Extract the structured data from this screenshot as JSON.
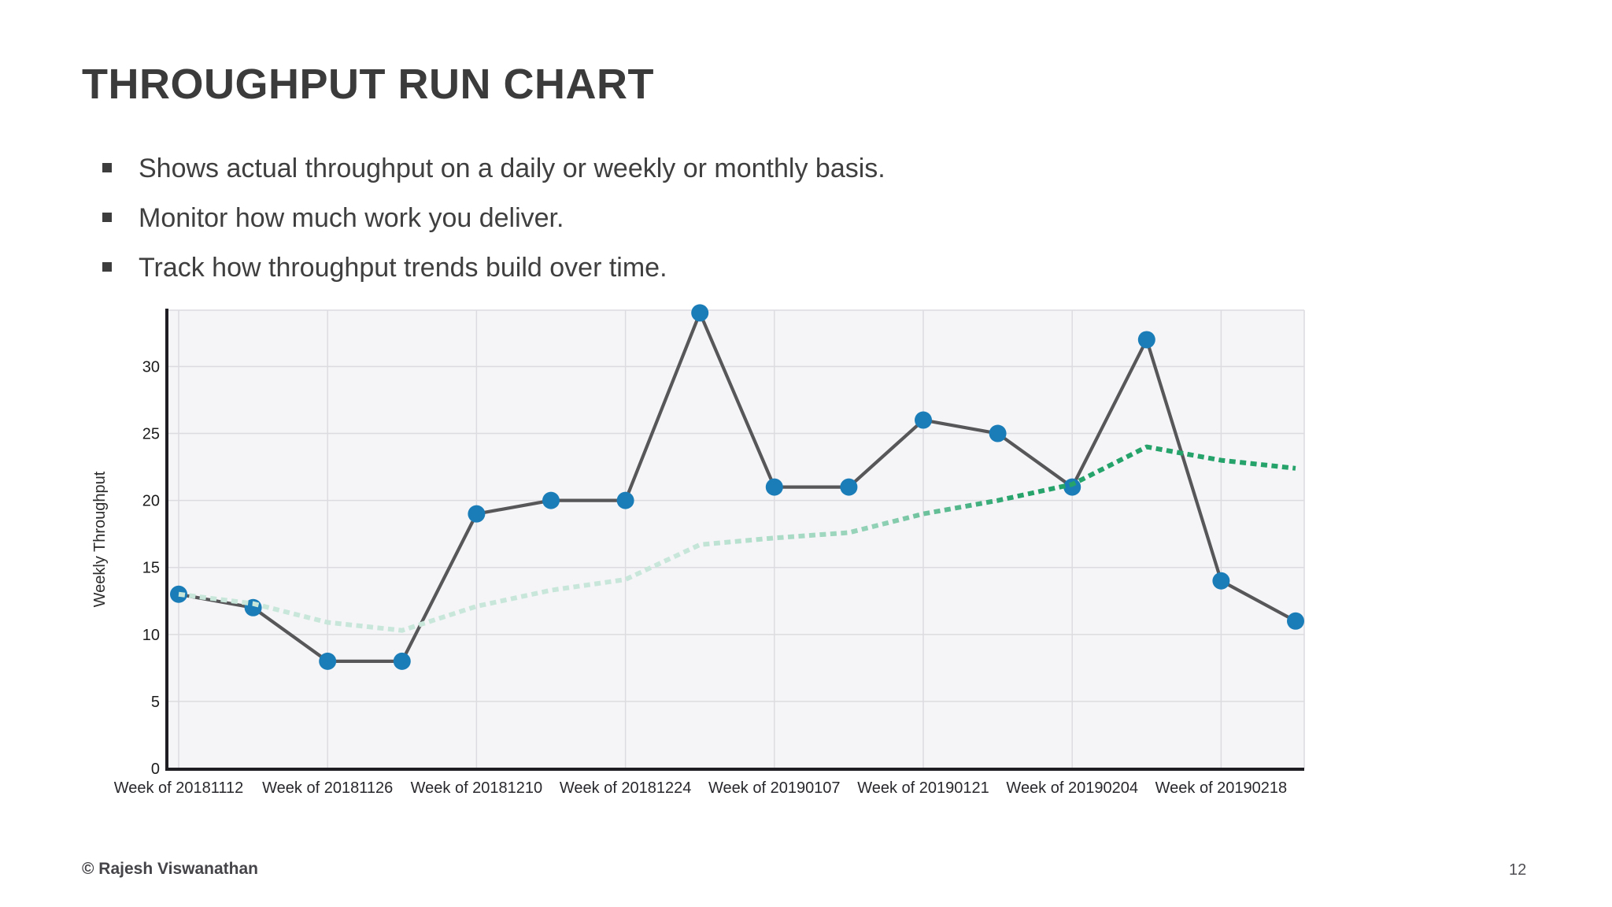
{
  "slide": {
    "title": "THROUGHPUT RUN CHART",
    "bullets": [
      "Shows actual throughput on a daily or weekly or monthly basis.",
      "Monitor how much work you deliver.",
      "Track how throughput trends build over time."
    ],
    "footer": {
      "copyright": "© Rajesh Viswanathan",
      "page_number": "12"
    }
  },
  "chart_data": {
    "type": "line",
    "title": "",
    "xlabel": "",
    "ylabel": "Weekly Throughput",
    "n_points": 16,
    "x_tick_labels": [
      "Week of 20181112",
      "Week of 20181126",
      "Week of 20181210",
      "Week of 20181224",
      "Week of 20190107",
      "Week of 20190121",
      "Week of 20190204",
      "Week of 20190218"
    ],
    "x_tick_point_indices": [
      0,
      2,
      4,
      6,
      8,
      10,
      12,
      14
    ],
    "y_ticks": [
      0,
      5,
      10,
      15,
      20,
      25,
      30
    ],
    "ylim": [
      0,
      34.2
    ],
    "grid": true,
    "legend": "none",
    "plot_bg": "#f5f5f7",
    "grid_color": "#dcdce0",
    "axis_color": "#1f1f23",
    "tick_label_color": "#28282c",
    "series": [
      {
        "name": "weekly-throughput",
        "style": "solid-with-markers",
        "line_color": "#57575a",
        "marker_color": "#1a7db8",
        "values": [
          13,
          12,
          8,
          8,
          19,
          20,
          20,
          34,
          21,
          21,
          26,
          25,
          21,
          32,
          14,
          11
        ]
      },
      {
        "name": "throughput-trend",
        "style": "dotted",
        "color_start": "#c8e7da",
        "color_mid": "#8fd0b4",
        "color_end": "#25a36b",
        "values": [
          13,
          12.3,
          10.9,
          10.3,
          12.1,
          13.3,
          14.1,
          16.7,
          17.2,
          17.6,
          19,
          20,
          21.2,
          24,
          23,
          22.4
        ]
      }
    ]
  }
}
